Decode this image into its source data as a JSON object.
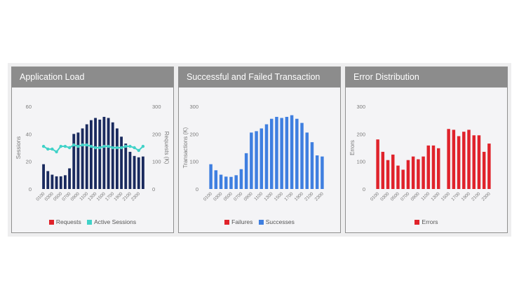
{
  "chart_data": [
    {
      "type": "bar+line",
      "title": "Application Load",
      "ylabel": "Sessions",
      "y2label": "Requests (K)",
      "ylim": [
        0,
        60
      ],
      "y2lim": [
        0,
        300
      ],
      "yticks": [
        0,
        20,
        40,
        60
      ],
      "y2ticks": [
        0,
        100,
        200,
        300
      ],
      "categories": [
        "0100",
        "0200",
        "0300",
        "0400",
        "0500",
        "0600",
        "0700",
        "0800",
        "0900",
        "1000",
        "1100",
        "1200",
        "1300",
        "1400",
        "1500",
        "1600",
        "1700",
        "1800",
        "1900",
        "2000",
        "2100",
        "2200",
        "2300",
        "2400"
      ],
      "xticks": [
        "0100",
        "0300",
        "0500",
        "0700",
        "0900",
        "1100",
        "1300",
        "1500",
        "1700",
        "1900",
        "2100",
        "2300"
      ],
      "series": [
        {
          "name": "Requests",
          "kind": "bar",
          "axis": "right",
          "color": "#1a2a5e",
          "values": [
            90,
            65,
            52,
            46,
            46,
            50,
            75,
            200,
            205,
            220,
            235,
            250,
            258,
            252,
            262,
            258,
            242,
            220,
            190,
            165,
            135,
            120,
            115,
            118
          ]
        },
        {
          "name": "Active Sessions",
          "kind": "line",
          "axis": "left",
          "color": "#40d2c8",
          "values": [
            31,
            29,
            29,
            27,
            31,
            31,
            30,
            32,
            31,
            32,
            32,
            31,
            30,
            30,
            31,
            31,
            30,
            30,
            30,
            31,
            31,
            30,
            28,
            31
          ]
        }
      ],
      "legend": [
        "Requests",
        "Active Sessions"
      ],
      "legend_position": "bottom"
    },
    {
      "type": "bar",
      "title": "Successful and Failed Transaction",
      "ylabel": "Transactions (K)",
      "ylim": [
        0,
        300
      ],
      "yticks": [
        0,
        100,
        200,
        300
      ],
      "categories": [
        "0100",
        "0200",
        "0300",
        "0400",
        "0500",
        "0600",
        "0700",
        "0800",
        "0900",
        "1000",
        "1100",
        "1200",
        "1300",
        "1400",
        "1500",
        "1600",
        "1700",
        "1800",
        "1900",
        "2000",
        "2100",
        "2200",
        "2300"
      ],
      "xticks": [
        "0100",
        "0300",
        "0500",
        "0700",
        "0900",
        "1100",
        "1300",
        "1500",
        "1700",
        "1900",
        "2100",
        "2300"
      ],
      "series": [
        {
          "name": "Failures",
          "kind": "bar",
          "color": "#e0232b",
          "values": [
            0,
            0,
            0,
            0,
            0,
            0,
            0,
            0,
            0,
            0,
            0,
            0,
            0,
            0,
            0,
            0,
            0,
            0,
            0,
            0,
            0,
            0,
            0
          ]
        },
        {
          "name": "Successes",
          "kind": "bar",
          "color": "#3f7fe0",
          "values": [
            90,
            68,
            52,
            45,
            44,
            50,
            72,
            130,
            205,
            210,
            220,
            235,
            255,
            262,
            258,
            262,
            268,
            255,
            240,
            205,
            170,
            122,
            118
          ]
        }
      ],
      "legend": [
        "Failures",
        "Successes"
      ],
      "legend_position": "bottom"
    },
    {
      "type": "bar",
      "title": "Error Distribution",
      "ylabel": "Errors",
      "ylim": [
        0,
        300
      ],
      "yticks": [
        0,
        100,
        200,
        300
      ],
      "categories": [
        "0100",
        "0200",
        "0300",
        "0400",
        "0500",
        "0600",
        "0700",
        "0800",
        "0900",
        "1000",
        "1100",
        "1200",
        "1300",
        "1400",
        "1500",
        "1600",
        "1700",
        "1800",
        "1900",
        "2000",
        "2100",
        "2200",
        "2300"
      ],
      "xticks": [
        "0100",
        "0300",
        "0500",
        "0700",
        "0900",
        "1100",
        "1300",
        "1500",
        "1700",
        "1900",
        "2100",
        "2300"
      ],
      "series": [
        {
          "name": "Errors",
          "kind": "bar",
          "color": "#e0232b",
          "values": [
            180,
            135,
            105,
            125,
            85,
            70,
            105,
            118,
            108,
            118,
            158,
            158,
            148,
            0,
            218,
            215,
            192,
            208,
            215,
            195,
            195,
            135,
            165
          ]
        }
      ],
      "legend": [
        "Errors"
      ],
      "legend_position": "bottom"
    }
  ]
}
